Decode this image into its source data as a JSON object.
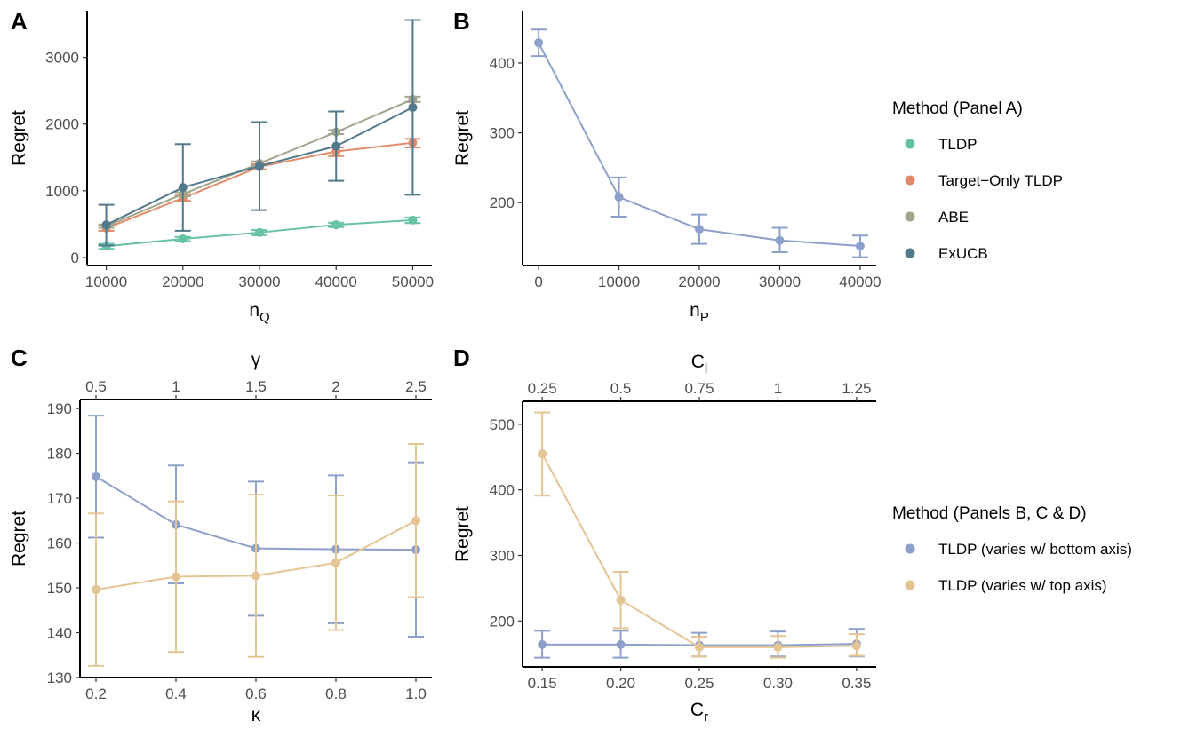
{
  "colors": {
    "tldp": "#66c2a5",
    "target_only": "#e08b6b",
    "abe": "#a1a48b",
    "exucb": "#51798c",
    "bottom": "#8da0cb",
    "top": "#e5c494"
  },
  "chart_data": [
    {
      "panel": "A",
      "type": "line",
      "xlabel": "n",
      "xlabel_sub": "Q",
      "ylabel": "Regret",
      "x": [
        10000,
        20000,
        30000,
        40000,
        50000
      ],
      "x_ticks": [
        "10000",
        "20000",
        "30000",
        "40000",
        "50000"
      ],
      "y_ticks": [
        0,
        1000,
        2000,
        3000
      ],
      "y_tick_labels": [
        "0",
        "1000",
        "2000",
        "3000"
      ],
      "xlim": [
        7500,
        52500
      ],
      "ylim": [
        -120,
        3700
      ],
      "series": [
        {
          "name": "TLDP",
          "color_key": "tldp",
          "values": [
            170,
            280,
            375,
            490,
            560
          ],
          "err_low": [
            130,
            245,
            335,
            455,
            515
          ],
          "err_high": [
            205,
            310,
            410,
            520,
            600
          ]
        },
        {
          "name": "Target−Only TLDP",
          "color_key": "target_only",
          "values": [
            440,
            890,
            1360,
            1590,
            1720
          ],
          "err_low": [
            400,
            850,
            1320,
            1520,
            1650
          ],
          "err_high": [
            480,
            930,
            1400,
            1650,
            1780
          ]
        },
        {
          "name": "ABE",
          "color_key": "abe",
          "values": [
            470,
            950,
            1410,
            1880,
            2370
          ],
          "err_low": [
            445,
            920,
            1380,
            1850,
            2330
          ],
          "err_high": [
            495,
            980,
            1440,
            1910,
            2410
          ]
        },
        {
          "name": "ExUCB",
          "color_key": "exucb",
          "values": [
            490,
            1050,
            1370,
            1670,
            2250
          ],
          "err_low": [
            180,
            400,
            710,
            1150,
            940
          ],
          "err_high": [
            790,
            1700,
            2030,
            2190,
            3560
          ]
        }
      ]
    },
    {
      "panel": "B",
      "type": "line",
      "xlabel": "n",
      "xlabel_sub": "P",
      "ylabel": "Regret",
      "x": [
        0,
        10000,
        20000,
        30000,
        40000
      ],
      "x_ticks": [
        "0",
        "10000",
        "20000",
        "30000",
        "40000"
      ],
      "y_ticks": [
        200,
        300,
        400
      ],
      "y_tick_labels": [
        "200",
        "300",
        "400"
      ],
      "xlim": [
        -2000,
        42000
      ],
      "ylim": [
        110,
        475
      ],
      "series": [
        {
          "name": "TLDP (varies w/ bottom axis)",
          "color_key": "bottom",
          "values": [
            429,
            208,
            162,
            146,
            138
          ],
          "err_low": [
            410,
            180,
            141,
            129,
            122
          ],
          "err_high": [
            448,
            236,
            183,
            164,
            153
          ]
        }
      ]
    },
    {
      "panel": "C",
      "type": "line",
      "xlabel": "κ",
      "top_label": "γ",
      "ylabel": "Regret",
      "x": [
        0.2,
        0.4,
        0.6,
        0.8,
        1.0
      ],
      "x_ticks": [
        "0.2",
        "0.4",
        "0.6",
        "0.8",
        "1.0"
      ],
      "x_top_ticks": [
        "0.5",
        "1",
        "1.5",
        "2",
        "2.5"
      ],
      "y_ticks": [
        130,
        140,
        150,
        160,
        170,
        180,
        190
      ],
      "y_tick_labels": [
        "130",
        "140",
        "150",
        "160",
        "170",
        "180",
        "190"
      ],
      "xlim": [
        0.16,
        1.04
      ],
      "ylim": [
        130,
        192
      ],
      "series": [
        {
          "name": "TLDP (varies w/ bottom axis)",
          "color_key": "bottom",
          "values": [
            174.8,
            164.1,
            158.8,
            158.6,
            158.5
          ],
          "err_low": [
            161.2,
            151.0,
            143.8,
            142.1,
            139.1
          ],
          "err_high": [
            188.4,
            177.3,
            173.7,
            175.1,
            178.0
          ]
        },
        {
          "name": "TLDP (varies w/ top axis)",
          "color_key": "top",
          "values": [
            149.6,
            152.5,
            152.7,
            155.6,
            165.0
          ],
          "err_low": [
            132.6,
            135.7,
            134.6,
            140.6,
            147.9
          ],
          "err_high": [
            166.6,
            169.3,
            170.8,
            170.6,
            182.1
          ]
        }
      ]
    },
    {
      "panel": "D",
      "type": "line",
      "xlabel": "C",
      "xlabel_sub": "r",
      "top_label": "C",
      "top_label_sub": "l",
      "ylabel": "Regret",
      "x": [
        0.15,
        0.2,
        0.25,
        0.3,
        0.35
      ],
      "x_ticks": [
        "0.15",
        "0.20",
        "0.25",
        "0.30",
        "0.35"
      ],
      "x_top_ticks": [
        "0.25",
        "0.5",
        "0.75",
        "1",
        "1.25"
      ],
      "y_ticks": [
        200,
        300,
        400,
        500
      ],
      "y_tick_labels": [
        "200",
        "300",
        "400",
        "500"
      ],
      "xlim": [
        0.1375,
        0.3625
      ],
      "ylim": [
        130,
        535
      ],
      "series": [
        {
          "name": "TLDP (varies w/ bottom axis)",
          "color_key": "bottom",
          "values": [
            164,
            164,
            163,
            163,
            165
          ],
          "err_low": [
            144,
            144,
            146,
            146,
            146
          ],
          "err_high": [
            185,
            185,
            182,
            184,
            188
          ]
        },
        {
          "name": "TLDP (varies w/ top axis)",
          "color_key": "top",
          "values": [
            455,
            232,
            160,
            160,
            162
          ],
          "err_low": [
            391,
            189,
            146,
            144,
            147
          ],
          "err_high": [
            518,
            275,
            176,
            177,
            180
          ]
        }
      ]
    }
  ],
  "legends": [
    {
      "title": "Method (Panel A)",
      "items": [
        {
          "label": "TLDP",
          "color_key": "tldp"
        },
        {
          "label": "Target−Only TLDP",
          "color_key": "target_only"
        },
        {
          "label": "ABE",
          "color_key": "abe"
        },
        {
          "label": "ExUCB",
          "color_key": "exucb"
        }
      ]
    },
    {
      "title": "Method (Panels B, C & D)",
      "items": [
        {
          "label": "TLDP (varies w/ bottom axis)",
          "color_key": "bottom"
        },
        {
          "label": "TLDP (varies w/ top axis)",
          "color_key": "top"
        }
      ]
    }
  ]
}
